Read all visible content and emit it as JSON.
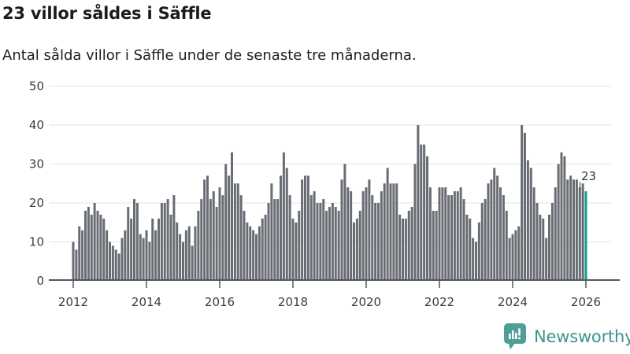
{
  "header": {},
  "chart_data": {
    "type": "bar",
    "title": "23 villor såldes i Säffle",
    "subtitle": "Antal sålda villor i Säffle under de senaste tre månaderna.",
    "frequency": "monthly",
    "x_start": "2012-01",
    "x_end": "2026-01",
    "xlabel": "",
    "ylabel": "",
    "ylim": [
      0,
      50
    ],
    "yticks": [
      0,
      10,
      20,
      30,
      40,
      50
    ],
    "xticks": [
      2012,
      2014,
      2016,
      2018,
      2020,
      2022,
      2024,
      2026
    ],
    "grid": "horizontal",
    "grid_color": "#e3e3e3",
    "axis_color": "#54575a",
    "tick_label_color": "#3d3d3d",
    "bar_color": "#686c73",
    "highlight_color": "#12a096",
    "highlight_index": 168,
    "annotation": {
      "text": "23",
      "target": "2026-01"
    },
    "values": [
      10,
      8,
      14,
      13,
      18,
      19,
      17,
      20,
      18,
      17,
      16,
      13,
      10,
      9,
      8,
      7,
      11,
      13,
      19,
      16,
      21,
      20,
      12,
      11,
      13,
      10,
      16,
      13,
      16,
      20,
      20,
      21,
      17,
      22,
      15,
      12,
      10,
      13,
      14,
      9,
      14,
      18,
      21,
      26,
      27,
      21,
      23,
      19,
      24,
      22,
      30,
      27,
      33,
      25,
      25,
      22,
      18,
      15,
      14,
      13,
      12,
      14,
      16,
      17,
      20,
      25,
      21,
      21,
      27,
      33,
      29,
      22,
      16,
      15,
      18,
      26,
      27,
      27,
      22,
      23,
      20,
      20,
      21,
      18,
      19,
      20,
      19,
      18,
      26,
      30,
      24,
      23,
      15,
      16,
      18,
      23,
      24,
      26,
      22,
      20,
      20,
      23,
      25,
      29,
      25,
      25,
      25,
      17,
      16,
      16,
      18,
      19,
      30,
      40,
      35,
      35,
      32,
      24,
      18,
      18,
      24,
      24,
      24,
      22,
      22,
      23,
      23,
      24,
      21,
      17,
      16,
      11,
      10,
      15,
      20,
      21,
      25,
      26,
      29,
      27,
      24,
      22,
      18,
      11,
      12,
      13,
      14,
      40,
      38,
      31,
      29,
      24,
      20,
      17,
      16,
      11,
      17,
      20,
      24,
      30,
      33,
      32,
      26,
      27,
      26,
      26,
      24,
      25,
      23
    ]
  },
  "footer": {
    "brand": "Newsworthy"
  }
}
